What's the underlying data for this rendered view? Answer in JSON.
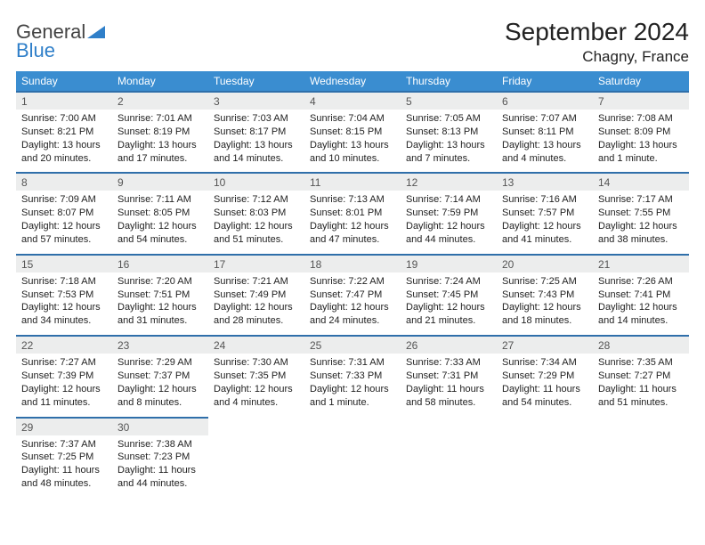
{
  "brand": {
    "line1": "General",
    "line2": "Blue"
  },
  "colors": {
    "header_bg": "#3a8dd0",
    "header_border": "#2f6faa",
    "daynum_bg": "#eceded",
    "text": "#222222",
    "brand_gray": "#444444",
    "brand_blue": "#2f7fc9"
  },
  "title": "September 2024",
  "location": "Chagny, France",
  "weekdays": [
    "Sunday",
    "Monday",
    "Tuesday",
    "Wednesday",
    "Thursday",
    "Friday",
    "Saturday"
  ],
  "weeks": [
    [
      {
        "n": "1",
        "sr": "7:00 AM",
        "ss": "8:21 PM",
        "dl": "13 hours and 20 minutes."
      },
      {
        "n": "2",
        "sr": "7:01 AM",
        "ss": "8:19 PM",
        "dl": "13 hours and 17 minutes."
      },
      {
        "n": "3",
        "sr": "7:03 AM",
        "ss": "8:17 PM",
        "dl": "13 hours and 14 minutes."
      },
      {
        "n": "4",
        "sr": "7:04 AM",
        "ss": "8:15 PM",
        "dl": "13 hours and 10 minutes."
      },
      {
        "n": "5",
        "sr": "7:05 AM",
        "ss": "8:13 PM",
        "dl": "13 hours and 7 minutes."
      },
      {
        "n": "6",
        "sr": "7:07 AM",
        "ss": "8:11 PM",
        "dl": "13 hours and 4 minutes."
      },
      {
        "n": "7",
        "sr": "7:08 AM",
        "ss": "8:09 PM",
        "dl": "13 hours and 1 minute."
      }
    ],
    [
      {
        "n": "8",
        "sr": "7:09 AM",
        "ss": "8:07 PM",
        "dl": "12 hours and 57 minutes."
      },
      {
        "n": "9",
        "sr": "7:11 AM",
        "ss": "8:05 PM",
        "dl": "12 hours and 54 minutes."
      },
      {
        "n": "10",
        "sr": "7:12 AM",
        "ss": "8:03 PM",
        "dl": "12 hours and 51 minutes."
      },
      {
        "n": "11",
        "sr": "7:13 AM",
        "ss": "8:01 PM",
        "dl": "12 hours and 47 minutes."
      },
      {
        "n": "12",
        "sr": "7:14 AM",
        "ss": "7:59 PM",
        "dl": "12 hours and 44 minutes."
      },
      {
        "n": "13",
        "sr": "7:16 AM",
        "ss": "7:57 PM",
        "dl": "12 hours and 41 minutes."
      },
      {
        "n": "14",
        "sr": "7:17 AM",
        "ss": "7:55 PM",
        "dl": "12 hours and 38 minutes."
      }
    ],
    [
      {
        "n": "15",
        "sr": "7:18 AM",
        "ss": "7:53 PM",
        "dl": "12 hours and 34 minutes."
      },
      {
        "n": "16",
        "sr": "7:20 AM",
        "ss": "7:51 PM",
        "dl": "12 hours and 31 minutes."
      },
      {
        "n": "17",
        "sr": "7:21 AM",
        "ss": "7:49 PM",
        "dl": "12 hours and 28 minutes."
      },
      {
        "n": "18",
        "sr": "7:22 AM",
        "ss": "7:47 PM",
        "dl": "12 hours and 24 minutes."
      },
      {
        "n": "19",
        "sr": "7:24 AM",
        "ss": "7:45 PM",
        "dl": "12 hours and 21 minutes."
      },
      {
        "n": "20",
        "sr": "7:25 AM",
        "ss": "7:43 PM",
        "dl": "12 hours and 18 minutes."
      },
      {
        "n": "21",
        "sr": "7:26 AM",
        "ss": "7:41 PM",
        "dl": "12 hours and 14 minutes."
      }
    ],
    [
      {
        "n": "22",
        "sr": "7:27 AM",
        "ss": "7:39 PM",
        "dl": "12 hours and 11 minutes."
      },
      {
        "n": "23",
        "sr": "7:29 AM",
        "ss": "7:37 PM",
        "dl": "12 hours and 8 minutes."
      },
      {
        "n": "24",
        "sr": "7:30 AM",
        "ss": "7:35 PM",
        "dl": "12 hours and 4 minutes."
      },
      {
        "n": "25",
        "sr": "7:31 AM",
        "ss": "7:33 PM",
        "dl": "12 hours and 1 minute."
      },
      {
        "n": "26",
        "sr": "7:33 AM",
        "ss": "7:31 PM",
        "dl": "11 hours and 58 minutes."
      },
      {
        "n": "27",
        "sr": "7:34 AM",
        "ss": "7:29 PM",
        "dl": "11 hours and 54 minutes."
      },
      {
        "n": "28",
        "sr": "7:35 AM",
        "ss": "7:27 PM",
        "dl": "11 hours and 51 minutes."
      }
    ],
    [
      {
        "n": "29",
        "sr": "7:37 AM",
        "ss": "7:25 PM",
        "dl": "11 hours and 48 minutes."
      },
      {
        "n": "30",
        "sr": "7:38 AM",
        "ss": "7:23 PM",
        "dl": "11 hours and 44 minutes."
      },
      null,
      null,
      null,
      null,
      null
    ]
  ],
  "labels": {
    "sunrise_prefix": "Sunrise: ",
    "sunset_prefix": "Sunset: ",
    "daylight_prefix": "Daylight: "
  }
}
